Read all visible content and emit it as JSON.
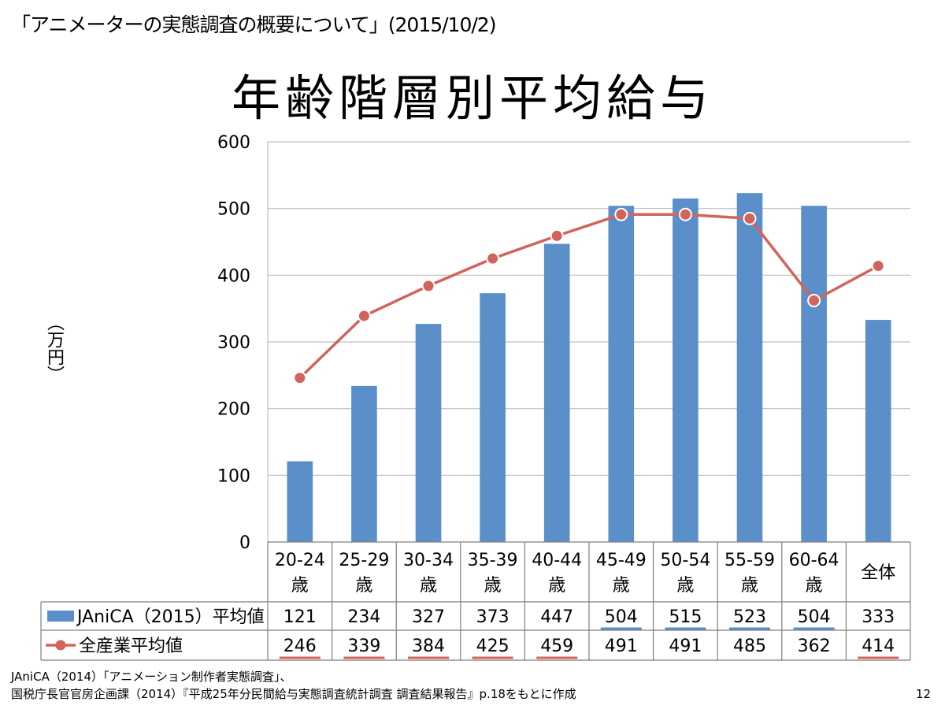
{
  "header": "「アニメーターの実態調査の概要について」(2015/10/2)",
  "title": "年齢階層別平均給与",
  "chart_data": {
    "type": "bar",
    "categories": [
      [
        "20-24",
        "歳"
      ],
      [
        "25-29",
        "歳"
      ],
      [
        "30-34",
        "歳"
      ],
      [
        "35-39",
        "歳"
      ],
      [
        "40-44",
        "歳"
      ],
      [
        "45-49",
        "歳"
      ],
      [
        "50-54",
        "歳"
      ],
      [
        "55-59",
        "歳"
      ],
      [
        "60-64",
        "歳"
      ],
      [
        "全体"
      ]
    ],
    "series": [
      {
        "name": "JAniCA（2015）平均値",
        "kind": "bar",
        "color": "#5b8fc9",
        "values": [
          121,
          234,
          327,
          373,
          447,
          504,
          515,
          523,
          504,
          333
        ],
        "underline": [
          false,
          false,
          false,
          false,
          false,
          true,
          true,
          true,
          true,
          false
        ]
      },
      {
        "name": "全産業平均値",
        "kind": "line",
        "color": "#d1645b",
        "values": [
          246,
          339,
          384,
          425,
          459,
          491,
          491,
          485,
          362,
          414
        ],
        "underline": [
          true,
          true,
          true,
          true,
          true,
          false,
          false,
          false,
          false,
          true
        ]
      }
    ],
    "ylabel": "（万円）",
    "ylim": [
      0,
      600
    ],
    "yticks": [
      0,
      100,
      200,
      300,
      400,
      500,
      600
    ],
    "grid": true,
    "legend": "table-left"
  },
  "source": [
    "JAniCA（2014）「アニメーション制作者実態調査」、",
    "国税庁長官官房企画課（2014）『平成25年分民間給与実態調査統計調査 調査結果報告』p.18をもとに作成"
  ],
  "page_number": "12"
}
